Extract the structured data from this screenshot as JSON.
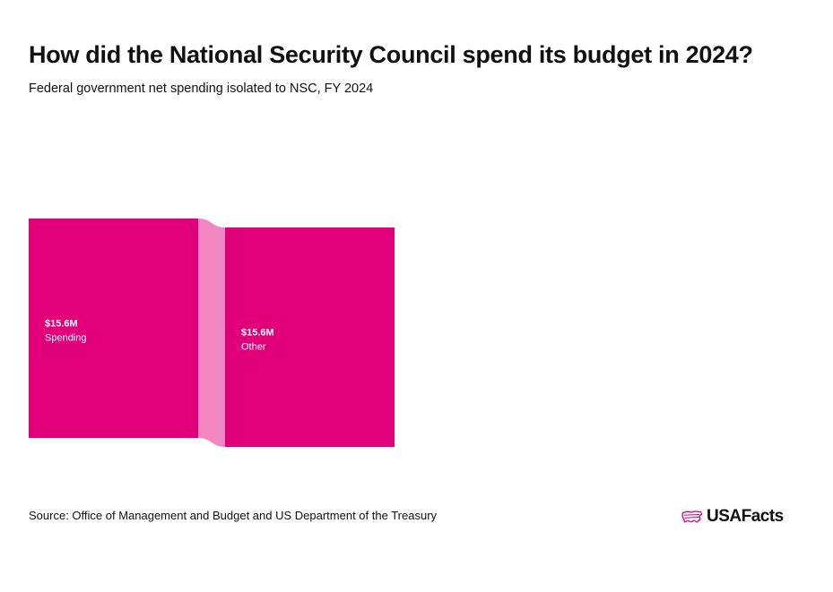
{
  "header": {
    "title": "How did the National Security Council spend its budget in 2024?",
    "subtitle": "Federal government net spending isolated to NSC, FY 2024"
  },
  "chart_data": {
    "type": "sankey",
    "nodes": [
      {
        "id": "spending",
        "label": "Spending",
        "value": 15.6,
        "value_label": "$15.6M",
        "column": 0
      },
      {
        "id": "other",
        "label": "Other",
        "value": 15.6,
        "value_label": "$15.6M",
        "column": 1
      }
    ],
    "links": [
      {
        "source": "spending",
        "target": "other",
        "value": 15.6
      }
    ],
    "units": "millions of US dollars",
    "colors": {
      "node": "#e2007a",
      "link": "#f286c2"
    }
  },
  "footer": {
    "source": "Source: Office of Management and Budget and US Department of the Treasury",
    "logo_text": "USAFacts",
    "logo_icon": "us-flag-map-icon",
    "logo_color": "#e2007a"
  }
}
